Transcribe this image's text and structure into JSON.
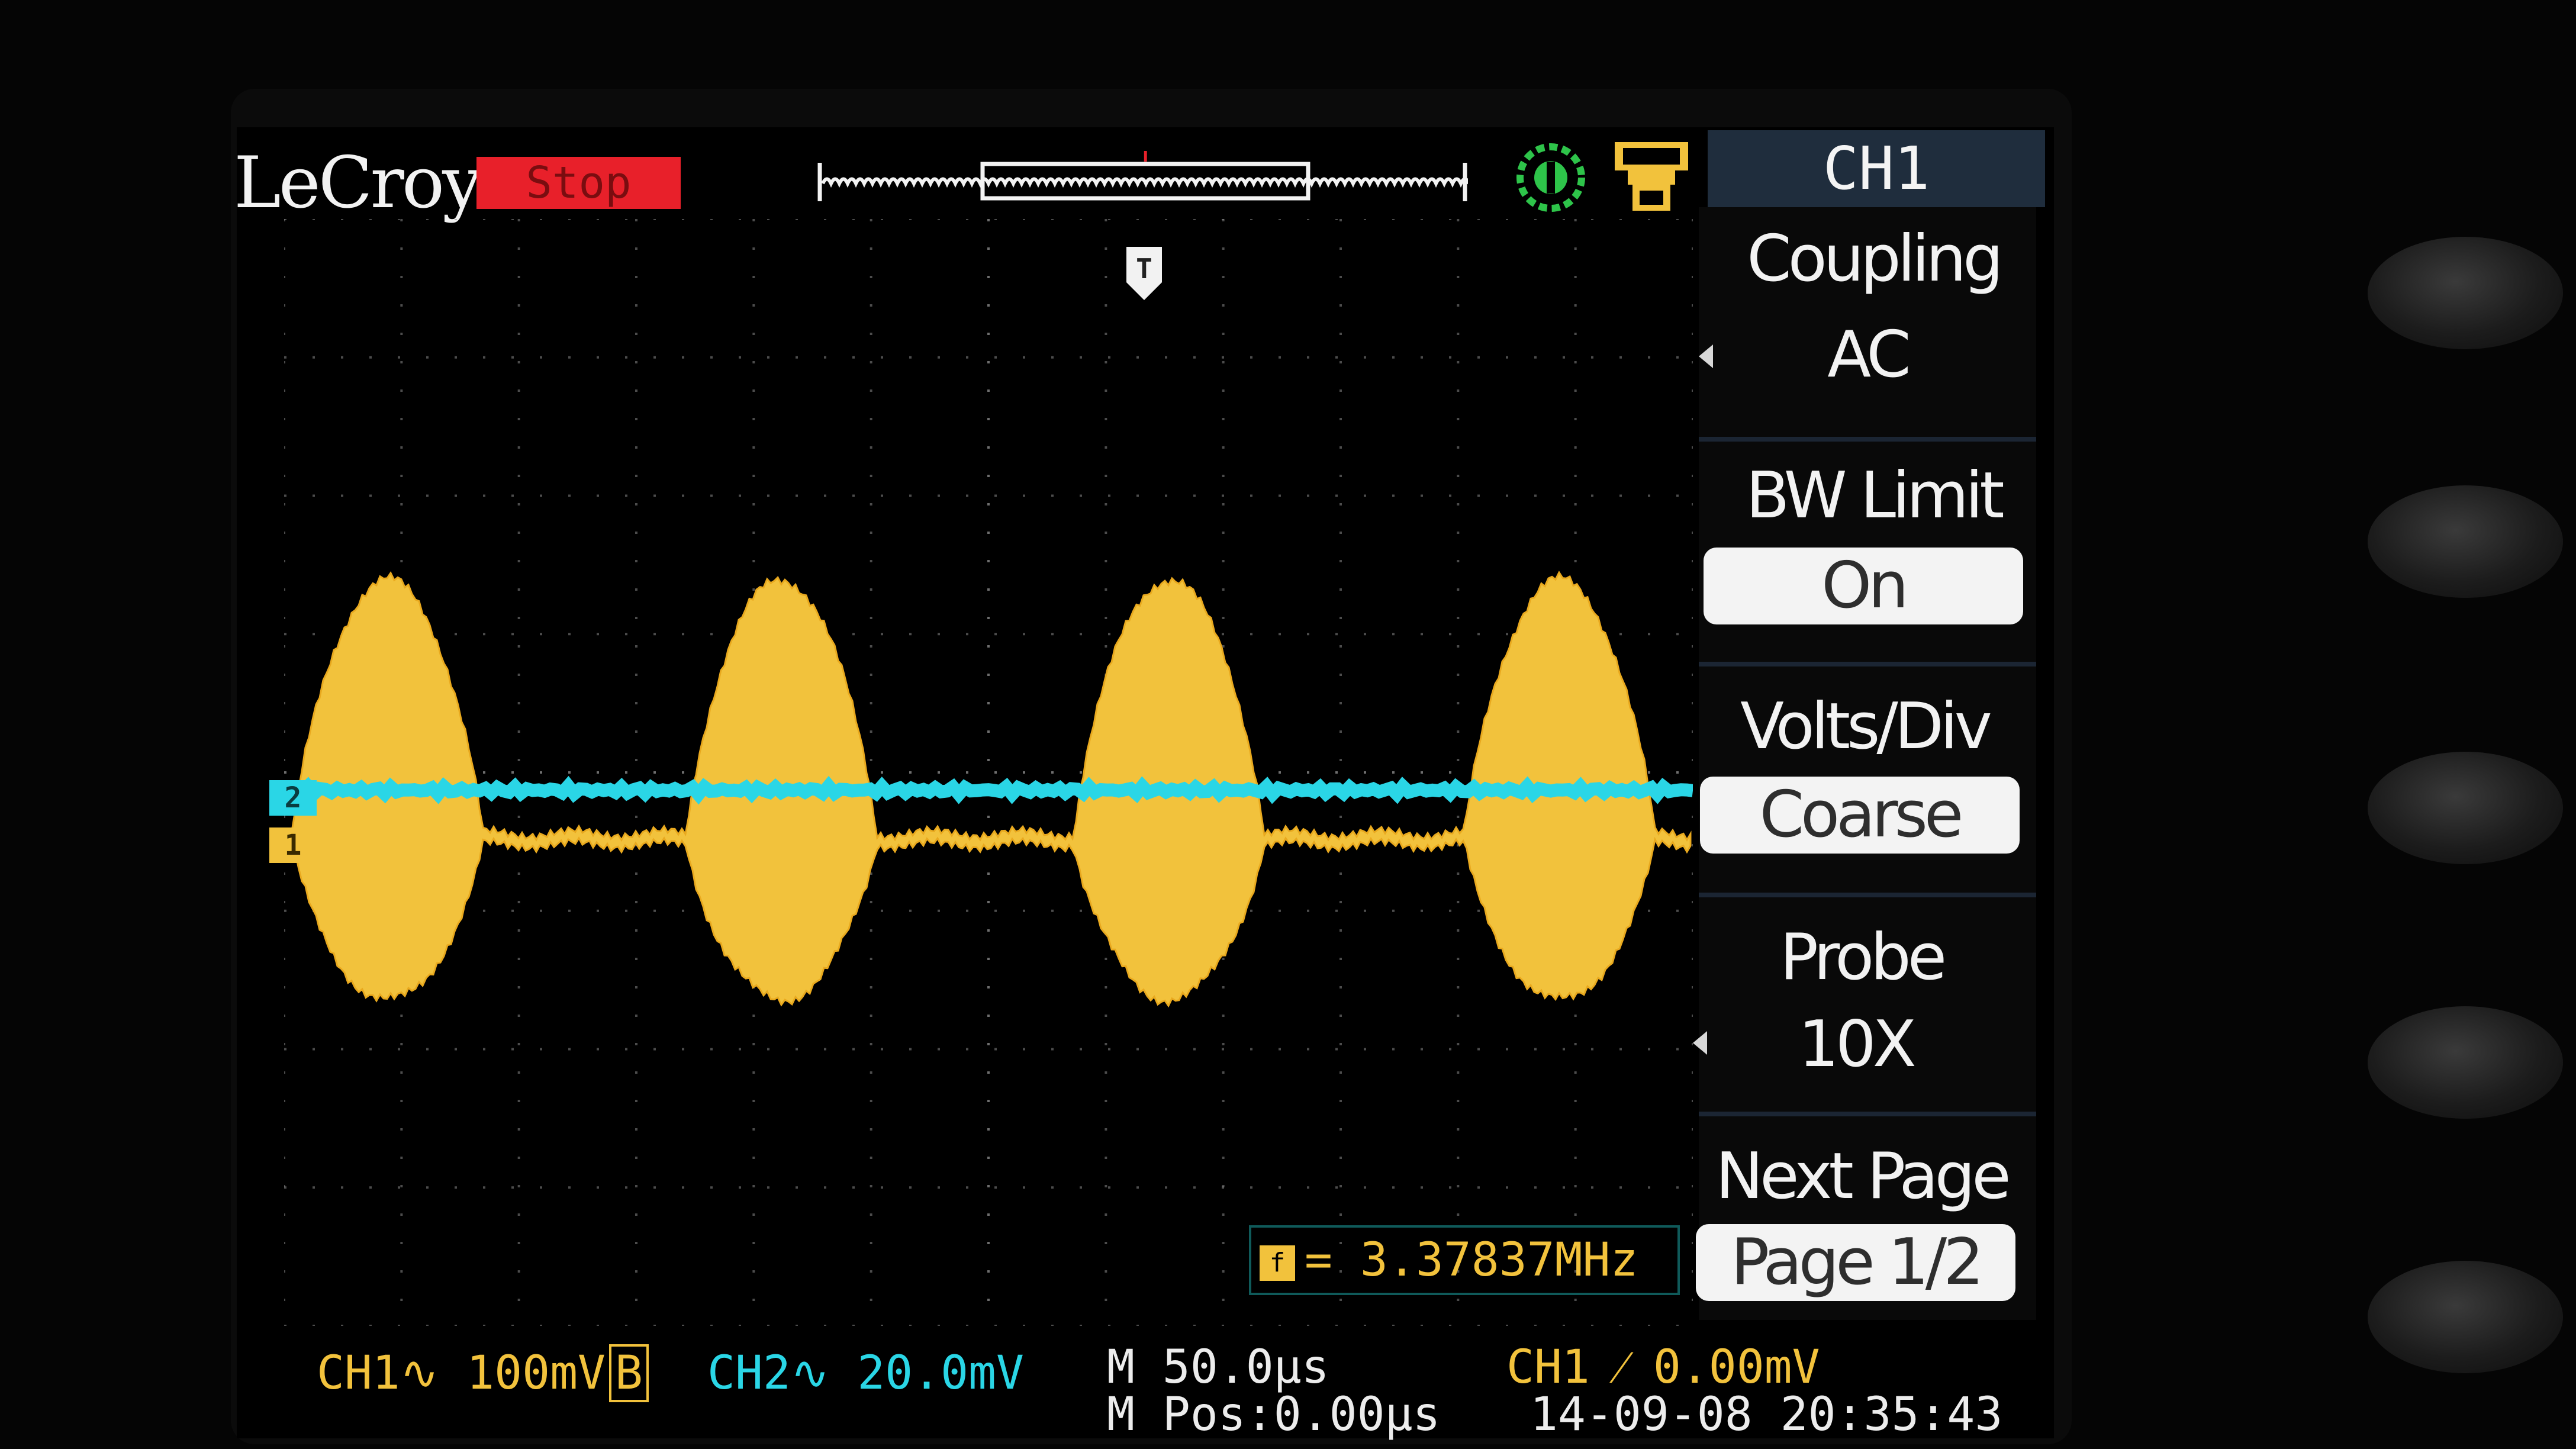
{
  "brand": "LeCroy",
  "run_state": "Stop",
  "colors": {
    "ch1": "#f2c23c",
    "ch2": "#2ad6e6",
    "stop": "#e8202a",
    "menu_header": "#1f2d3d"
  },
  "header_icons": [
    "green-status-icon",
    "usb-storage-icon"
  ],
  "trigger_marker": "T",
  "timeline_marker": "T",
  "channel_markers": {
    "ch1": "1",
    "ch2": "2"
  },
  "menu": {
    "title": "CH1",
    "items": [
      {
        "label": "Coupling",
        "value": "AC"
      },
      {
        "label": "BW Limit",
        "value": "On"
      },
      {
        "label": "Volts/Div",
        "value": "Coarse"
      },
      {
        "label": "Probe",
        "value": "10X"
      },
      {
        "label": "Next Page",
        "value": "Page 1/2"
      }
    ]
  },
  "measurement": {
    "label": "f",
    "text": "= 3.37837MHz"
  },
  "status_bar": {
    "ch1": "CH1∿ 100mV",
    "ch1_bw": "B",
    "ch2": "CH2∿ 20.0mV",
    "timebase": "M 50.0μs",
    "position": "M Pos:0.00μs",
    "trigger": "CH1 ⁄ 0.00mV",
    "datetime": "14-09-08 20:35:43"
  }
}
